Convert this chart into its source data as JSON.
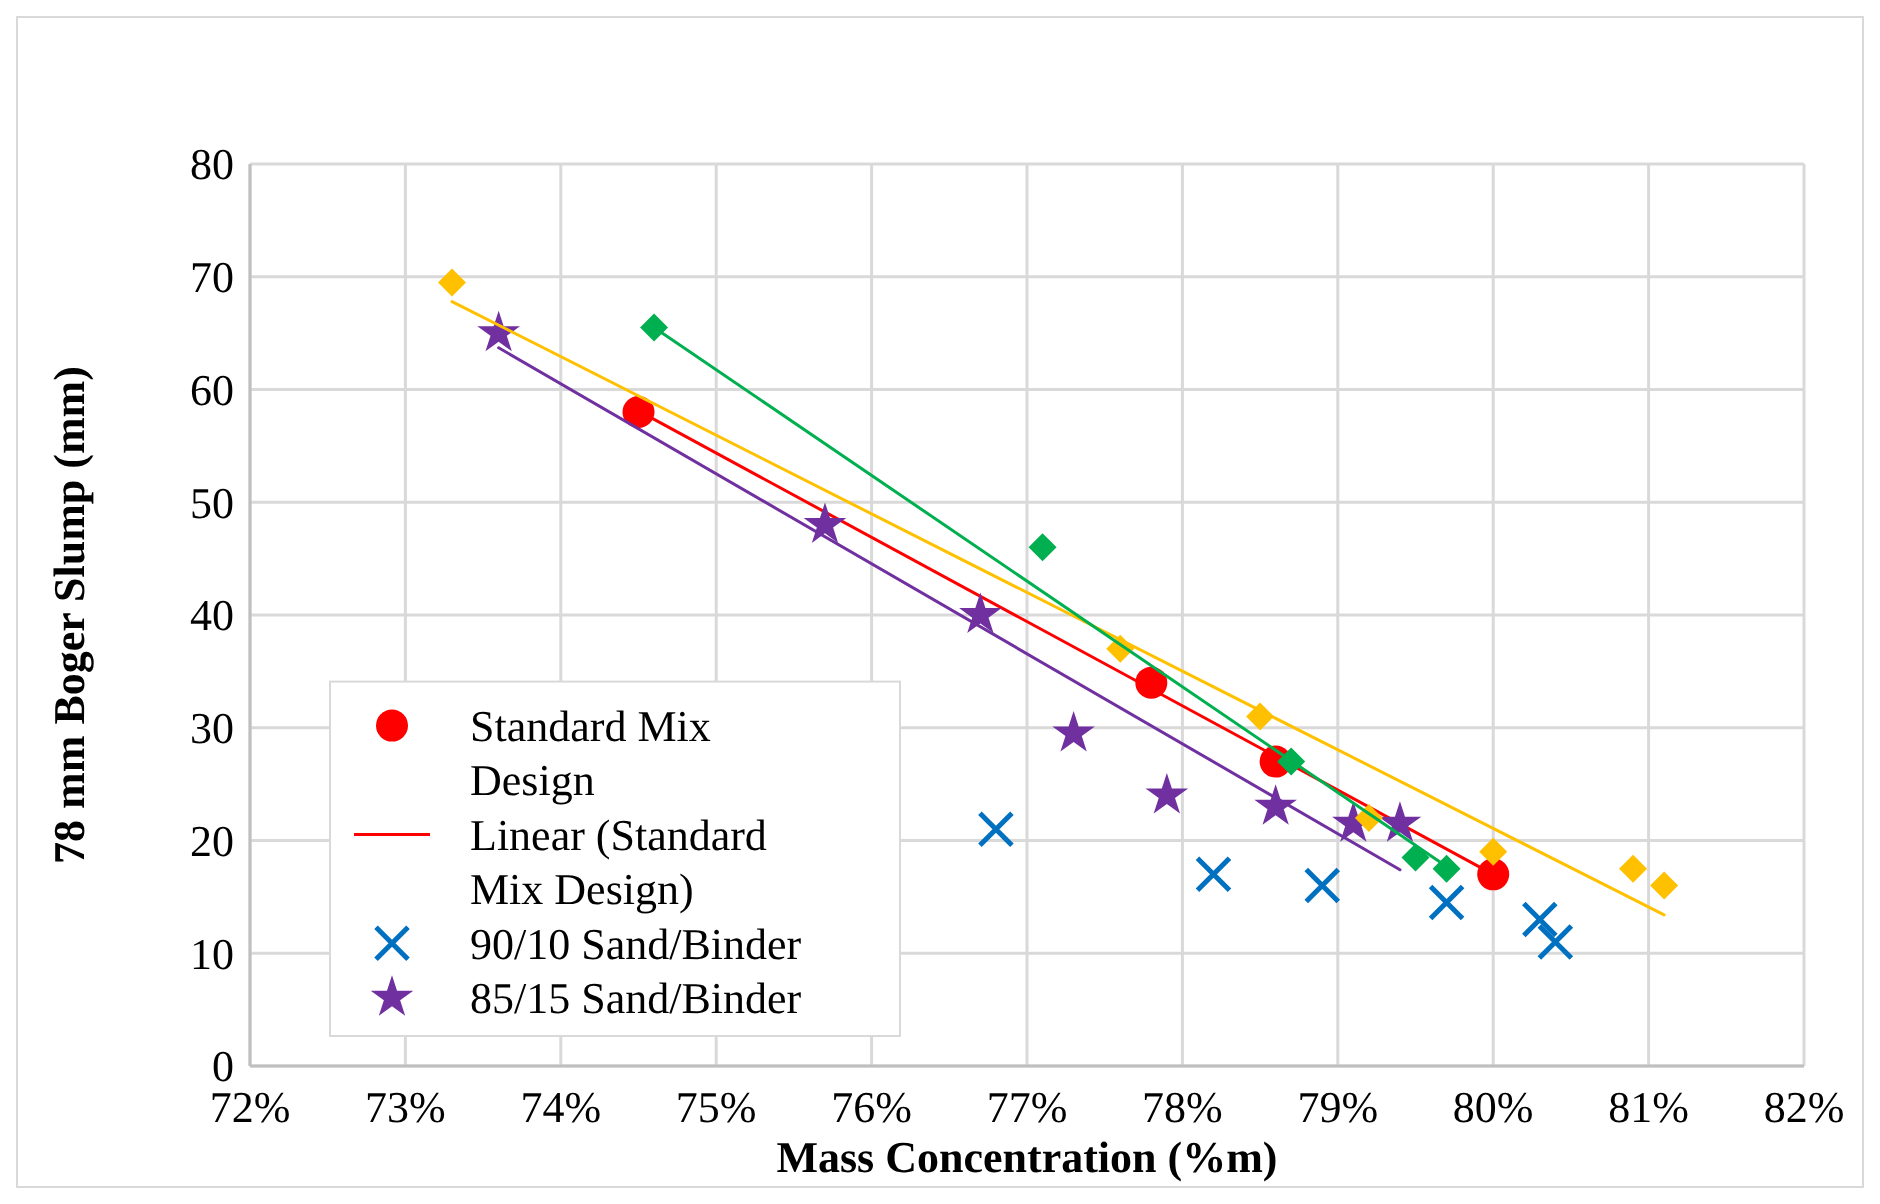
{
  "chart_data": {
    "type": "scatter",
    "xlabel": "Mass Concentration (%m)",
    "ylabel": "78 mm Boger Slump (mm)",
    "xlim": [
      72,
      82
    ],
    "xticks": [
      {
        "value": 72,
        "label": "72%"
      },
      {
        "value": 73,
        "label": "73%"
      },
      {
        "value": 74,
        "label": "74%"
      },
      {
        "value": 75,
        "label": "75%"
      },
      {
        "value": 76,
        "label": "76%"
      },
      {
        "value": 77,
        "label": "77%"
      },
      {
        "value": 78,
        "label": "78%"
      },
      {
        "value": 79,
        "label": "79%"
      },
      {
        "value": 80,
        "label": "80%"
      },
      {
        "value": 81,
        "label": "81%"
      },
      {
        "value": 82,
        "label": "82%"
      }
    ],
    "ylim": [
      0,
      80
    ],
    "yticks": [
      0,
      10,
      20,
      30,
      40,
      50,
      60,
      70,
      80
    ],
    "grid": true,
    "legend": "bottom left",
    "series": [
      {
        "name": "Standard Mix Design",
        "marker": "circle",
        "color": "#ff0000",
        "x": [
          74.5,
          77.8,
          78.6,
          80
        ],
        "values": [
          58,
          34,
          27,
          17
        ]
      },
      {
        "name": "Linear (Standard Mix Design)",
        "type": "line",
        "marker": "none",
        "line_style": "solid",
        "color": "#ff0000",
        "x": [
          74.5,
          80
        ],
        "values": [
          58.1,
          17
        ]
      },
      {
        "name": "90/10 Sand/Binder",
        "marker": "cross",
        "color": "#0070c0",
        "x": [
          76.8,
          78.2,
          78.9,
          79.7,
          80.3,
          80.4
        ],
        "values": [
          21,
          17,
          16,
          14.5,
          13,
          11
        ]
      },
      {
        "name": "85/15 Sand/Binder",
        "marker": "star",
        "color": "#7030a0",
        "x": [
          73.6,
          75.7,
          76.7,
          77.3,
          77.9,
          78.6,
          79.1,
          79.4
        ],
        "values": [
          65,
          48,
          40,
          29.5,
          24,
          23,
          21.5,
          21.5
        ]
      },
      {
        "marker": "diamond",
        "color": "#00b050",
        "x": [
          74.6,
          77.1,
          78.7,
          79.5,
          79.7
        ],
        "values": [
          65.5,
          46,
          27,
          18.5,
          17.5
        ]
      },
      {
        "marker": "diamond",
        "color": "#ffc000",
        "x": [
          73.3,
          77.6,
          78.5,
          79.2,
          80,
          80.9,
          81.1
        ],
        "values": [
          69.5,
          37,
          31,
          22,
          19,
          17.5,
          16
        ]
      },
      {
        "type": "line",
        "marker": "none",
        "line_style": "solid",
        "color": "#ffc000",
        "x": [
          73.3,
          81.1
        ],
        "values": [
          67.8,
          13.4
        ]
      },
      {
        "type": "line",
        "marker": "none",
        "line_style": "solid",
        "color": "#00b050",
        "x": [
          74.6,
          79.7
        ],
        "values": [
          65.5,
          17.7
        ]
      },
      {
        "type": "line",
        "marker": "none",
        "line_style": "solid",
        "color": "#7030a0",
        "x": [
          73.6,
          79.4
        ],
        "values": [
          63.7,
          17.4
        ]
      }
    ]
  }
}
